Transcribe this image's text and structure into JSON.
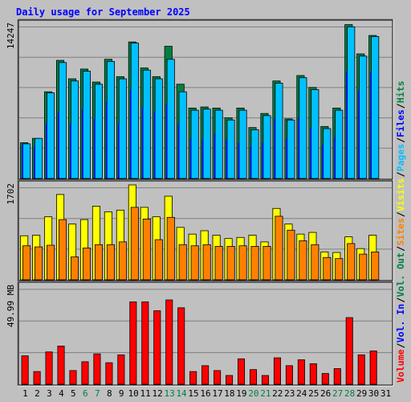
{
  "title": "Daily usage for September 2025",
  "chart_data": [
    {
      "type": "bar",
      "panel": "hits",
      "scale_label": "14247",
      "x": [
        1,
        2,
        3,
        4,
        5,
        6,
        7,
        8,
        9,
        10,
        11,
        12,
        13,
        14,
        15,
        16,
        17,
        18,
        19,
        20,
        21,
        22,
        23,
        24,
        25,
        26,
        27,
        28,
        29,
        30,
        31
      ],
      "ylim": [
        0,
        14247
      ],
      "series": [
        {
          "name": "Hits",
          "color": "#008040",
          "values": [
            3300,
            3700,
            8000,
            10900,
            9200,
            10100,
            8900,
            11000,
            9400,
            12600,
            10200,
            9400,
            12200,
            8700,
            6500,
            6600,
            6500,
            5600,
            6500,
            4700,
            6000,
            9000,
            5500,
            9500,
            8400,
            4800,
            6500,
            14200,
            11500,
            13200,
            0
          ]
        },
        {
          "name": "Files",
          "color": "#0000ff",
          "values": [
            3100,
            2900,
            5100,
            6100,
            5000,
            6400,
            5500,
            7100,
            5000,
            8200,
            6500,
            6200,
            6900,
            5000,
            3700,
            3600,
            4100,
            3600,
            3300,
            2900,
            3300,
            5500,
            3700,
            5600,
            4700,
            3100,
            3800,
            9900,
            8100,
            9800,
            0
          ]
        },
        {
          "name": "Pages",
          "color": "#00c0ff",
          "values": [
            3200,
            3700,
            7900,
            10700,
            9000,
            9900,
            8700,
            10800,
            9200,
            12500,
            10000,
            9200,
            11000,
            8000,
            6300,
            6400,
            6300,
            5400,
            6300,
            4500,
            5800,
            8800,
            5400,
            9300,
            8200,
            4600,
            6300,
            14000,
            11300,
            13100,
            0
          ]
        }
      ],
      "legend": [
        "Hits",
        "Files",
        "Pages"
      ]
    },
    {
      "type": "bar",
      "panel": "visits",
      "scale_label": "1702",
      "x": [
        1,
        2,
        3,
        4,
        5,
        6,
        7,
        8,
        9,
        10,
        11,
        12,
        13,
        14,
        15,
        16,
        17,
        18,
        19,
        20,
        21,
        22,
        23,
        24,
        25,
        26,
        27,
        28,
        29,
        30,
        31
      ],
      "ylim": [
        0,
        1702
      ],
      "series": [
        {
          "name": "Visits",
          "color": "#ffff00",
          "values": [
            790,
            800,
            1130,
            1530,
            1000,
            1080,
            1320,
            1220,
            1250,
            1702,
            1300,
            1130,
            1500,
            940,
            820,
            880,
            800,
            740,
            760,
            800,
            680,
            1280,
            1000,
            820,
            850,
            500,
            490,
            770,
            560,
            800,
            0
          ]
        },
        {
          "name": "Sites",
          "color": "#ff8000",
          "values": [
            610,
            590,
            620,
            1080,
            410,
            570,
            630,
            630,
            680,
            1300,
            1090,
            720,
            1120,
            630,
            610,
            630,
            600,
            600,
            610,
            600,
            600,
            1140,
            890,
            700,
            630,
            400,
            380,
            650,
            460,
            500,
            0
          ]
        }
      ],
      "legend": [
        "Visits",
        "Sites"
      ]
    },
    {
      "type": "bar",
      "panel": "volume",
      "scale_label": "49.99 MB",
      "x": [
        1,
        2,
        3,
        4,
        5,
        6,
        7,
        8,
        9,
        10,
        11,
        12,
        13,
        14,
        15,
        16,
        17,
        18,
        19,
        20,
        21,
        22,
        23,
        24,
        25,
        26,
        27,
        28,
        29,
        30,
        31
      ],
      "ylim": [
        0,
        49.99
      ],
      "series": [
        {
          "name": "Volume",
          "color": "#ff0000",
          "values": [
            14.5,
            6.5,
            16.5,
            19.5,
            7.0,
            11.5,
            15.5,
            11.0,
            15.0,
            42.0,
            42.0,
            37.5,
            43.0,
            39.0,
            6.5,
            9.5,
            7.0,
            4.5,
            13.0,
            7.5,
            4.5,
            13.5,
            9.5,
            12.5,
            10.5,
            5.5,
            8.0,
            34.0,
            15.0,
            17.0,
            0
          ]
        }
      ],
      "legend": [
        "Volume",
        "In",
        "Out"
      ]
    }
  ],
  "x_axis": {
    "labels": [
      "1",
      "2",
      "3",
      "4",
      "5",
      "6",
      "7",
      "8",
      "9",
      "10",
      "11",
      "12",
      "13",
      "14",
      "15",
      "16",
      "17",
      "18",
      "19",
      "20",
      "21",
      "22",
      "23",
      "24",
      "25",
      "26",
      "27",
      "28",
      "29",
      "30",
      "31"
    ],
    "weekend_days": [
      6,
      7,
      13,
      14,
      20,
      21,
      27,
      28
    ],
    "weekend_color": "#008040",
    "weekday_color": "#000000"
  },
  "right_legend": [
    {
      "text": "Volume",
      "color": "#ff0000"
    },
    {
      "text": "/",
      "color": "#000000"
    },
    {
      "text": "Vol. In",
      "color": "#0000ff"
    },
    {
      "text": "/",
      "color": "#000000"
    },
    {
      "text": "Vol. Out",
      "color": "#008040"
    },
    {
      "text": "/",
      "color": "#000000"
    },
    {
      "text": "Sites",
      "color": "#ff8000"
    },
    {
      "text": "/",
      "color": "#000000"
    },
    {
      "text": "Visits",
      "color": "#ffff00"
    },
    {
      "text": "/",
      "color": "#000000"
    },
    {
      "text": "Pages",
      "color": "#00c0ff"
    },
    {
      "text": "/",
      "color": "#000000"
    },
    {
      "text": "Files",
      "color": "#0000ff"
    },
    {
      "text": "/",
      "color": "#000000"
    },
    {
      "text": "Hits",
      "color": "#008040"
    }
  ]
}
